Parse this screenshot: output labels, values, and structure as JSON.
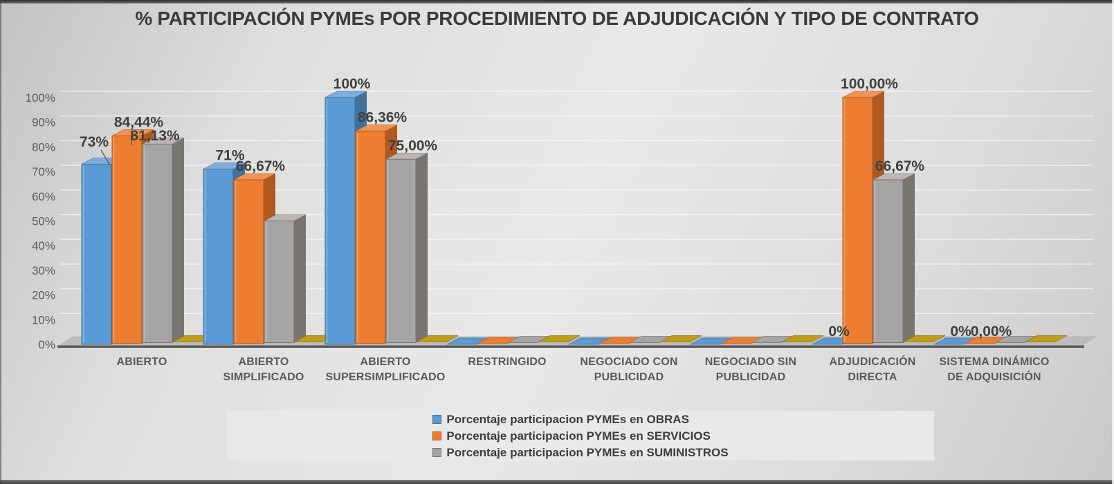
{
  "chart_data": {
    "type": "bar",
    "style": "3d-clustered-column",
    "title": "% PARTICIPACIÓN PYMEs POR PROCEDIMIENTO DE ADJUDICACIÓN Y TIPO DE CONTRATO",
    "categories": [
      "ABIERTO",
      "ABIERTO SIMPLIFICADO",
      "ABIERTO SUPERSIMPLIFICADO",
      "RESTRINGIDO",
      "NEGOCIADO CON PUBLICIDAD",
      "NEGOCIADO SIN PUBLICIDAD",
      "ADJUDICACIÓN DIRECTA",
      "SISTEMA DINÁMICO DE ADQUISICIÓN"
    ],
    "categories_lines": [
      [
        "ABIERTO"
      ],
      [
        "ABIERTO",
        "SIMPLIFICADO"
      ],
      [
        "ABIERTO",
        "SUPERSIMPLIFICADO"
      ],
      [
        "RESTRINGIDO"
      ],
      [
        "NEGOCIADO CON",
        "PUBLICIDAD"
      ],
      [
        "NEGOCIADO SIN",
        "PUBLICIDAD"
      ],
      [
        "ADJUDICACIÓN",
        "DIRECTA"
      ],
      [
        "SISTEMA DINÁMICO",
        "DE ADQUISICIÓN"
      ]
    ],
    "series": [
      {
        "name": "Porcentaje participacion PYMEs en OBRAS",
        "color": "#5B9BD5",
        "side_color": "#41719C",
        "top_color": "#7FAEDD",
        "values": [
          73,
          71,
          100,
          0,
          0,
          0,
          0,
          0
        ],
        "data_labels": [
          "73%",
          "71%",
          "100%",
          null,
          null,
          null,
          "0%",
          "0%"
        ]
      },
      {
        "name": "Porcentaje participacion PYMEs en SERVICIOS",
        "color": "#ED7D31",
        "side_color": "#AE5A21",
        "top_color": "#F09355",
        "values": [
          84.44,
          66.67,
          86.36,
          0,
          0,
          0,
          100,
          0
        ],
        "data_labels": [
          "84,44%",
          "66,67%",
          "86,36%",
          null,
          null,
          null,
          "100,00%",
          "0,00%"
        ]
      },
      {
        "name": "Porcentaje participacion PYMEs en SUMINISTROS",
        "color": "#A5A5A5",
        "side_color": "#787470",
        "top_color": "#BBB7B2",
        "values": [
          81.13,
          50,
          75,
          0,
          0,
          0,
          66.67,
          0
        ],
        "data_labels": [
          "81,13%",
          null,
          "75,00%",
          null,
          null,
          null,
          "66,67%",
          null
        ]
      }
    ],
    "unlabeled_floor_series": {
      "color": "#BF9C1C",
      "side_color": "#8F7414",
      "values": [
        0,
        0,
        0,
        0,
        0,
        0,
        0,
        0
      ]
    },
    "y_axis": {
      "min": 0,
      "max": 100,
      "step": 10,
      "tick_labels": [
        "0%",
        "10%",
        "20%",
        "30%",
        "40%",
        "50%",
        "60%",
        "70%",
        "80%",
        "90%",
        "100%"
      ]
    },
    "grid": true,
    "legend_position": "bottom",
    "label_layout_overrides": {
      "s0c0": {
        "x": 136,
        "y": 212,
        "leader": [
          146,
          217,
          159,
          239
        ]
      },
      "s2c0": {
        "x": 224,
        "y": 203,
        "leader": [
          190,
          186,
          190,
          210
        ]
      }
    },
    "text_colors": {
      "title": "#3b3b3b",
      "data_label": "#3f3f3f",
      "axis_tick": "#595959",
      "category_label": "#595959",
      "legend_label": "#3d3d3d"
    }
  }
}
